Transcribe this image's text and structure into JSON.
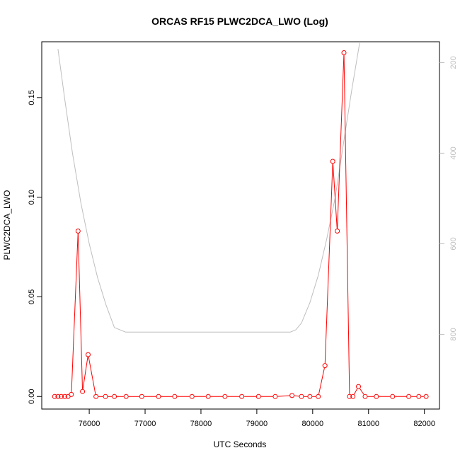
{
  "chart_data": {
    "type": "line",
    "title": "ORCAS RF15 PLWC2DCA_LWO (Log)",
    "xlabel": "UTC Seconds",
    "ylabel": "PLWC2DCA_LWO",
    "xlim": [
      75150,
      82270
    ],
    "ylim": [
      -0.0063,
      0.178
    ],
    "x_ticks": [
      "76000",
      "77000",
      "78000",
      "79000",
      "80000",
      "81000",
      "82000"
    ],
    "y_ticks": [
      "0.00",
      "0.05",
      "0.10",
      "0.15"
    ],
    "y2_ticks": [
      "200",
      "400",
      "600",
      "800"
    ],
    "y2lim": [
      965,
      154
    ],
    "colors": {
      "series": "#ff0000",
      "altitude": "#bebebe"
    },
    "series": [
      {
        "values_x": [
          75380,
          75440,
          75500,
          75560,
          75620,
          75680,
          75800,
          75880,
          75980,
          76120,
          76290,
          76450,
          76660,
          76940,
          77240,
          77530,
          77840,
          78130,
          78430,
          78730,
          79030,
          79330,
          79630,
          79800,
          79950,
          80100,
          80220,
          80360,
          80440,
          80560,
          80660,
          80720,
          80820,
          80940,
          81140,
          81430,
          81720,
          81900,
          82030
        ],
        "values_y": [
          0.0,
          0.0,
          0.0,
          0.0,
          0.0,
          0.001,
          0.083,
          0.0025,
          0.021,
          0.0,
          0.0,
          0.0,
          0.0,
          0.0,
          0.0,
          0.0,
          0.0,
          0.0,
          0.0,
          0.0,
          0.0,
          0.0,
          0.0005,
          0.0,
          0.0,
          0.0,
          0.0155,
          0.118,
          0.083,
          0.1725,
          0.0,
          0.0,
          0.005,
          0.0,
          0.0,
          0.0,
          0.0,
          0.0,
          0.0
        ]
      },
      {
        "values_x": [
          75440,
          75560,
          75700,
          75850,
          76000,
          76150,
          76300,
          76450,
          76650,
          77000,
          78000,
          79000,
          79600,
          79700,
          79800,
          79950,
          80100,
          80250,
          80400,
          80550,
          80700,
          80850
        ],
        "values_y2": [
          170,
          280,
          400,
          510,
          600,
          675,
          735,
          785,
          795,
          795,
          795,
          795,
          795,
          790,
          775,
          730,
          670,
          590,
          500,
          380,
          260,
          150
        ]
      }
    ]
  }
}
